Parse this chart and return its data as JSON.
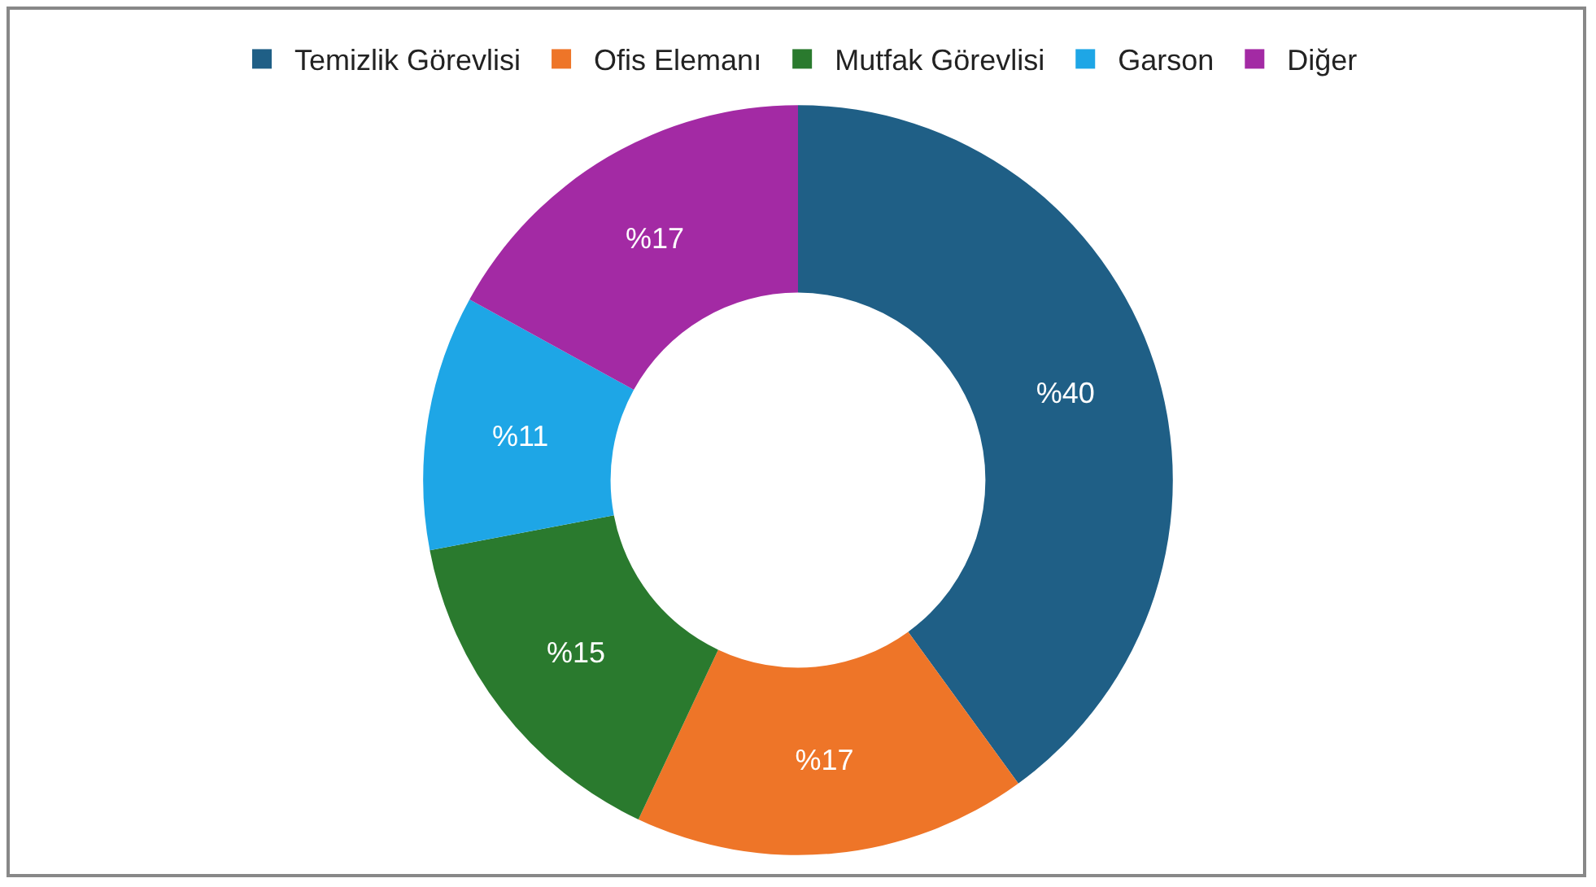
{
  "chart_data": {
    "type": "donut",
    "categories": [
      "Temizlik Görevlisi",
      "Ofis Elemanı",
      "Mutfak Görevlisi",
      "Garson",
      "Diğer"
    ],
    "values": [
      40,
      17,
      15,
      11,
      17
    ],
    "colors": [
      "#1f5f86",
      "#ee7528",
      "#2a7a2e",
      "#1ea6e6",
      "#a32aa4"
    ],
    "value_labels": [
      "%40",
      "%17",
      "%15",
      "%11",
      "%17"
    ],
    "legend": "top"
  }
}
